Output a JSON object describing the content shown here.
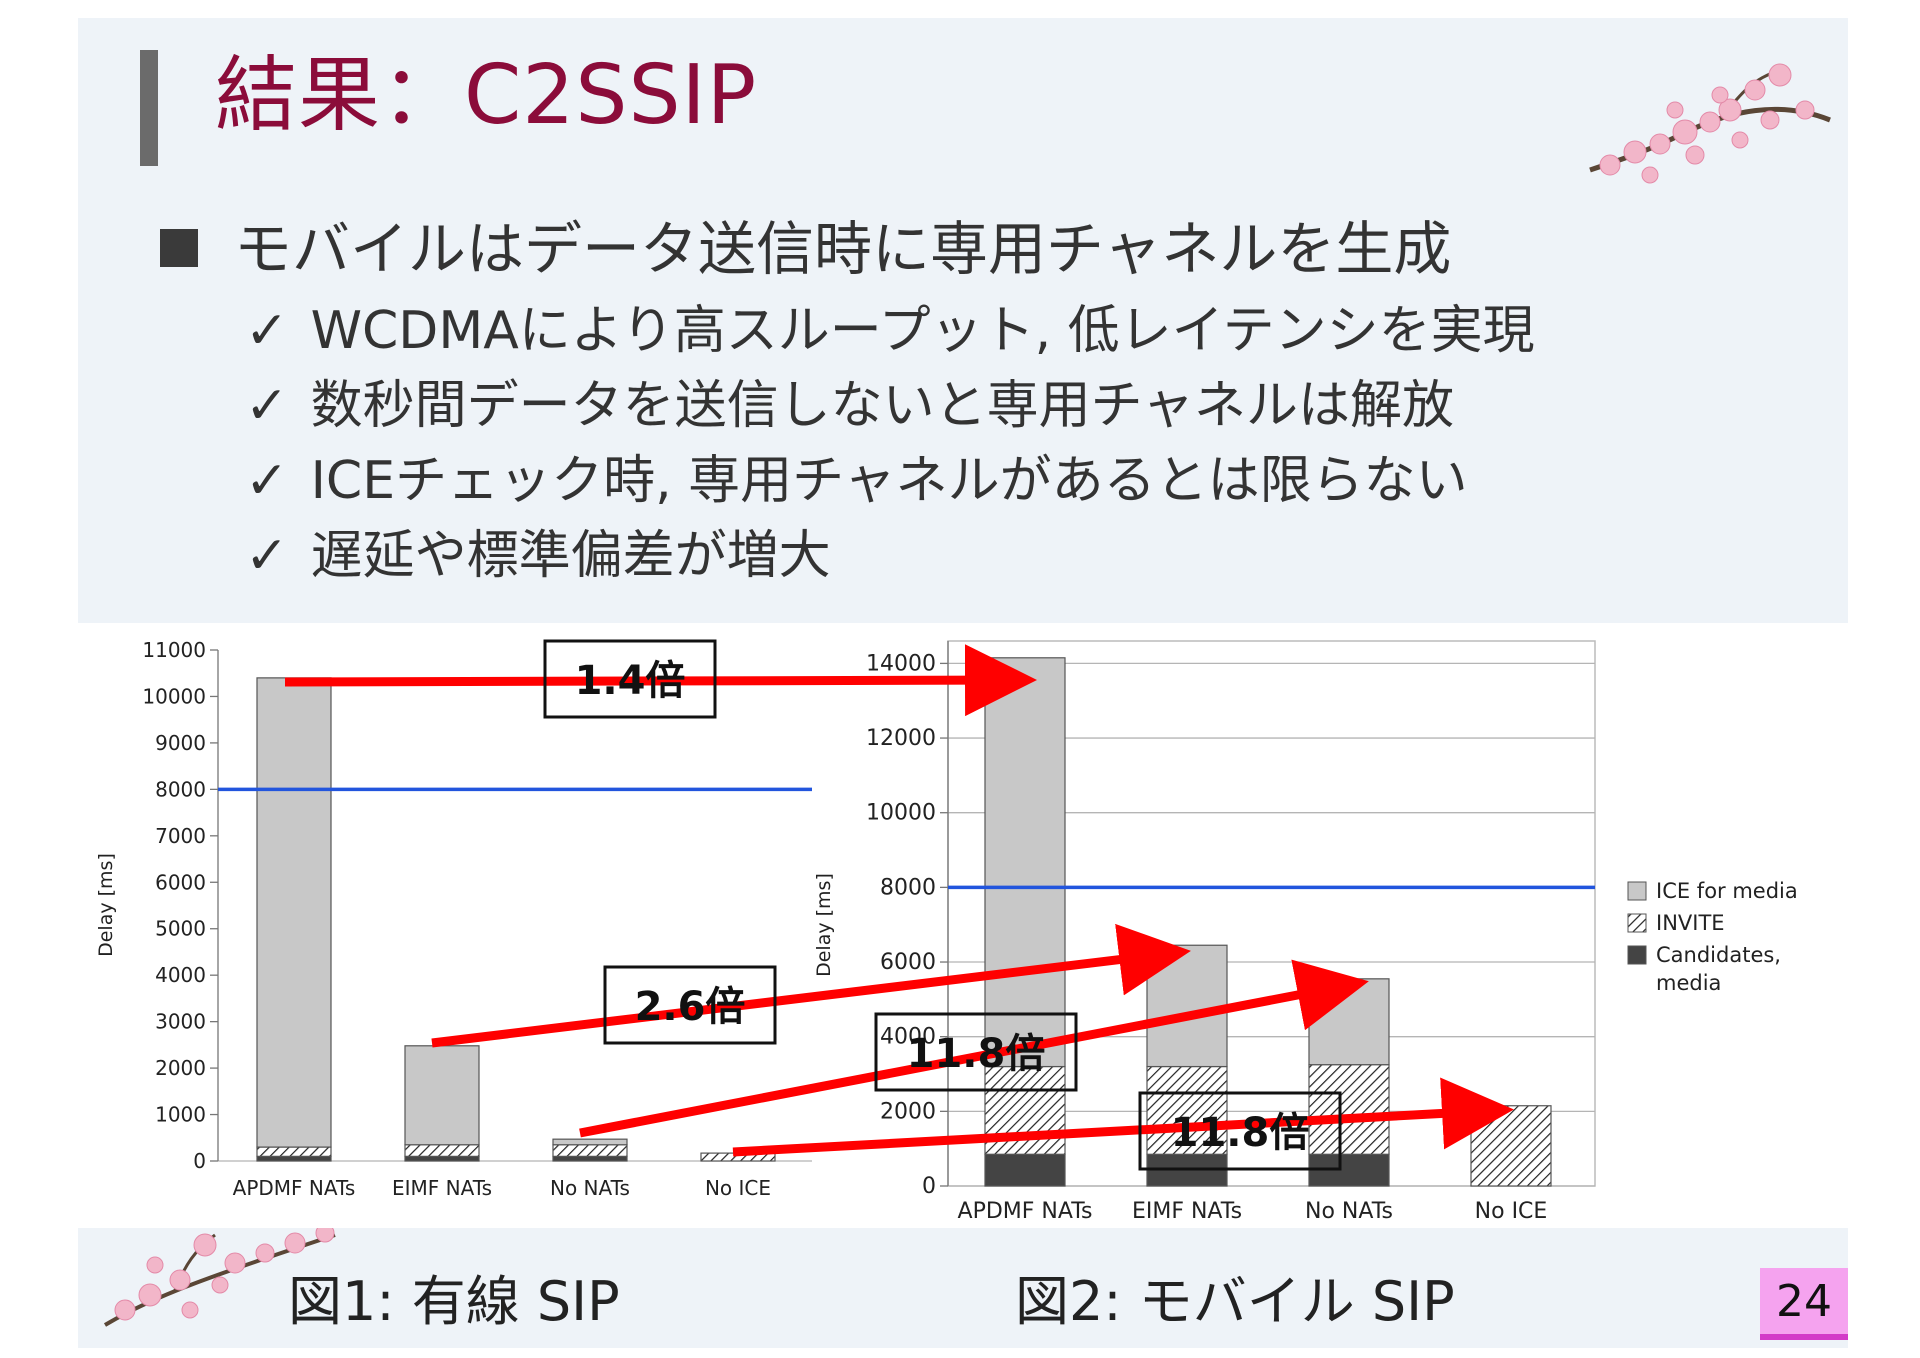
{
  "slide": {
    "title": "結果：C2SSIP",
    "bullet": "モバイルはデータ送信時に専用チャネルを生成",
    "sub_bullets": [
      "WCDMAにより高スループット, 低レイテンシを実現",
      "数秒間データを送信しないと専用チャネルは解放",
      "ICEチェック時, 専用チャネルがあるとは限らない",
      "遅延や標準偏差が増大"
    ],
    "check_mark": "✓",
    "caption1": "図1: 有線 SIP",
    "caption2": "図2: モバイル SIP",
    "page_number": "24",
    "title_color": "#8b0c3a"
  },
  "chart_data": [
    {
      "type": "bar",
      "stacked": true,
      "categories": [
        "APDMF NATs",
        "EIMF NATs",
        "No NATs",
        "No ICE"
      ],
      "ylabel": "Delay [ms]",
      "ylim": [
        0,
        11000
      ],
      "yticks": [
        0,
        1000,
        2000,
        3000,
        4000,
        5000,
        6000,
        7000,
        8000,
        9000,
        10000,
        11000
      ],
      "threshold_line": 8000,
      "series": [
        {
          "name": "Candidates, media",
          "values": [
            100,
            100,
            100,
            0
          ],
          "color": "#444444"
        },
        {
          "name": "INVITE",
          "values": [
            200,
            250,
            250,
            170
          ],
          "color": "hatch"
        },
        {
          "name": "ICE for media",
          "values": [
            10100,
            2130,
            120,
            0
          ],
          "color": "#c8c8c8"
        }
      ]
    },
    {
      "type": "bar",
      "stacked": true,
      "categories": [
        "APDMF NATs",
        "EIMF NATs",
        "No NATs",
        "No ICE"
      ],
      "ylabel": "Delay [ms]",
      "ylim": [
        0,
        14600
      ],
      "yticks": [
        0,
        2000,
        4000,
        6000,
        8000,
        10000,
        12000,
        14000
      ],
      "threshold_line": 8000,
      "series": [
        {
          "name": "Candidates, media",
          "values": [
            850,
            850,
            850,
            0
          ],
          "color": "#444444"
        },
        {
          "name": "INVITE",
          "values": [
            2350,
            2350,
            2400,
            2150
          ],
          "color": "hatch"
        },
        {
          "name": "ICE for media",
          "values": [
            10950,
            3250,
            2300,
            0
          ],
          "color": "#c8c8c8"
        }
      ],
      "legend": [
        "ICE for media",
        "INVITE",
        "Candidates, media"
      ],
      "legend_position": "right"
    }
  ],
  "annotations": [
    {
      "label": "1.4倍"
    },
    {
      "label": "2.6倍"
    },
    {
      "label": "11.8倍"
    },
    {
      "label": "11.8倍"
    }
  ]
}
